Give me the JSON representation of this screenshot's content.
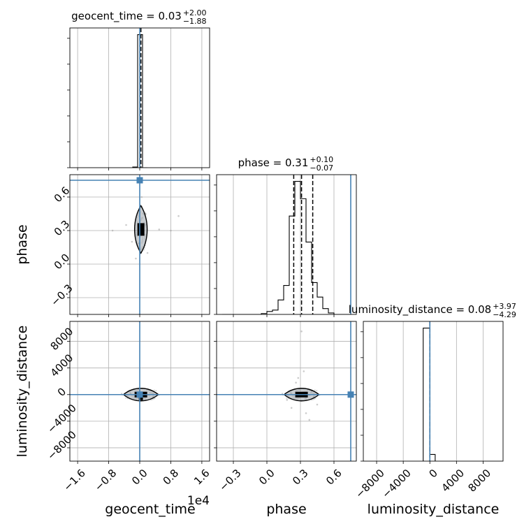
{
  "chart_data": {
    "type": "corner",
    "parameters": [
      "geocent_time",
      "phase",
      "luminosity_distance"
    ],
    "axis_labels": [
      "geocent_time",
      "phase",
      "luminosity_distance"
    ],
    "x_offset_label": "1e4",
    "titles": {
      "geocent_time": {
        "prefix": "geocent_time = 0.03",
        "plus": "+2.00",
        "minus": "−1.88"
      },
      "phase": {
        "prefix": "phase = 0.31",
        "plus": "+0.10",
        "minus": "−0.07"
      },
      "luminosity_distance": {
        "prefix": "luminosity_distance = 0.08",
        "plus": "+3.97",
        "minus": "−4.29"
      }
    },
    "ranges": {
      "geocent_time": [
        -1.8,
        1.8
      ],
      "phase": [
        -0.45,
        0.8
      ],
      "luminosity_distance": [
        -10000,
        11000
      ]
    },
    "ticks": {
      "geocent_time": {
        "values": [
          -1.6,
          -0.8,
          0.0,
          0.8,
          1.6
        ],
        "labels": [
          "−1.6",
          "−0.8",
          "0.0",
          "0.8",
          "1.6"
        ]
      },
      "phase": {
        "values": [
          -0.3,
          0.0,
          0.3,
          0.6
        ],
        "labels": [
          "−0.3",
          "0.0",
          "0.3",
          "0.6"
        ]
      },
      "luminosity_distance": {
        "values": [
          -8000,
          -4000,
          0,
          4000,
          8000
        ],
        "labels": [
          "−8000",
          "−4000",
          "0",
          "4000",
          "8000"
        ]
      }
    },
    "truths": {
      "geocent_time": 0.0,
      "phase": 0.75,
      "luminosity_distance": 0.0
    },
    "quantiles": {
      "geocent_time": [
        -1.85,
        0.03,
        2.03
      ],
      "phase": [
        0.24,
        0.31,
        0.41
      ],
      "luminosity_distance": [
        -4.21,
        0.08,
        4.05
      ]
    },
    "histograms": {
      "geocent_time": {
        "edges": [
          -0.18,
          -0.054,
          0.072,
          0.198
        ],
        "counts": [
          0.5,
          100,
          0
        ]
      },
      "phase": {
        "edges": [
          -0.4,
          -0.35,
          -0.3,
          -0.25,
          -0.2,
          -0.15,
          -0.1,
          -0.05,
          0.0,
          0.05,
          0.1,
          0.15,
          0.2,
          0.25,
          0.3,
          0.35,
          0.4,
          0.45,
          0.5,
          0.55,
          0.6,
          0.65,
          0.7,
          0.75
        ],
        "counts": [
          0,
          0,
          0,
          0,
          0,
          0,
          0,
          0.3,
          1,
          1.5,
          5,
          10,
          34,
          46,
          40,
          25,
          11,
          6,
          2,
          0.5,
          0,
          0,
          0
        ]
      },
      "luminosity_distance": {
        "edges": [
          -1000,
          0,
          800
        ],
        "counts": [
          100,
          5
        ]
      }
    },
    "scatter": {
      "geocent_time_phase": [
        [
          -0.7,
          0.3
        ],
        [
          -0.35,
          0.35
        ],
        [
          0.5,
          0.31
        ],
        [
          0.8,
          0.3
        ],
        [
          1.0,
          0.43
        ],
        [
          -0.2,
          0.2
        ],
        [
          0.15,
          0.45
        ],
        [
          -0.1,
          0.05
        ],
        [
          0.05,
          0.6
        ],
        [
          0.2,
          0.1
        ]
      ],
      "phase_luminosity_distance": [
        [
          0.31,
          9500
        ],
        [
          0.33,
          3500
        ],
        [
          0.28,
          2500
        ],
        [
          0.35,
          -2800
        ],
        [
          0.22,
          -2000
        ],
        [
          0.4,
          500
        ],
        [
          0.18,
          -800
        ],
        [
          0.45,
          -1500
        ],
        [
          0.26,
          1800
        ],
        [
          0.38,
          -3800
        ]
      ]
    },
    "grid": true
  }
}
